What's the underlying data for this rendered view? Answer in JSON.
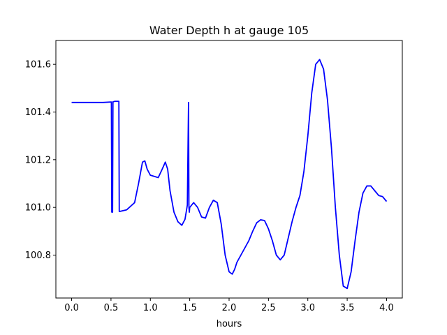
{
  "chart_data": {
    "type": "line",
    "title": "Water Depth h at gauge 105",
    "xlabel": "hours",
    "ylabel": "",
    "xlim": [
      -0.2,
      4.2
    ],
    "ylim": [
      100.62,
      101.7
    ],
    "xticks": [
      0.0,
      0.5,
      1.0,
      1.5,
      2.0,
      2.5,
      3.0,
      3.5,
      4.0
    ],
    "xtick_labels": [
      "0.0",
      "0.5",
      "1.0",
      "1.5",
      "2.0",
      "2.5",
      "3.0",
      "3.5",
      "4.0"
    ],
    "yticks": [
      100.8,
      101.0,
      101.2,
      101.4,
      101.6
    ],
    "ytick_labels": [
      "100.8",
      "101.0",
      "101.2",
      "101.4",
      "101.6"
    ],
    "grid": false,
    "legend": "none",
    "color": "#0000ff",
    "series": [
      {
        "x": [
          0.0,
          0.2,
          0.4,
          0.5,
          0.505,
          0.51,
          0.52,
          0.525,
          0.53,
          0.55,
          0.6,
          0.605,
          0.61,
          0.7,
          0.8,
          0.85,
          0.9,
          0.93,
          0.96,
          1.0,
          1.05,
          1.1,
          1.15,
          1.19,
          1.22,
          1.25,
          1.3,
          1.35,
          1.4,
          1.44,
          1.47,
          1.48,
          1.485,
          1.49,
          1.495,
          1.5,
          1.55,
          1.6,
          1.65,
          1.7,
          1.75,
          1.8,
          1.85,
          1.9,
          1.95,
          2.0,
          2.04,
          2.07,
          2.1,
          2.15,
          2.2,
          2.25,
          2.3,
          2.35,
          2.4,
          2.45,
          2.5,
          2.55,
          2.6,
          2.65,
          2.7,
          2.75,
          2.8,
          2.85,
          2.9,
          2.95,
          3.0,
          3.05,
          3.1,
          3.15,
          3.2,
          3.25,
          3.3,
          3.35,
          3.4,
          3.45,
          3.5,
          3.55,
          3.6,
          3.65,
          3.7,
          3.75,
          3.8,
          3.85,
          3.9,
          3.95,
          4.0
        ],
        "y": [
          101.44,
          101.44,
          101.44,
          101.442,
          101.442,
          100.98,
          100.98,
          101.443,
          101.443,
          101.445,
          101.445,
          100.983,
          100.983,
          100.99,
          101.02,
          101.1,
          101.19,
          101.195,
          101.16,
          101.135,
          101.13,
          101.125,
          101.16,
          101.19,
          101.16,
          101.07,
          100.98,
          100.94,
          100.925,
          100.95,
          101.01,
          101.3,
          101.44,
          101.0,
          100.98,
          101.0,
          101.02,
          101.0,
          100.96,
          100.955,
          101.0,
          101.03,
          101.02,
          100.93,
          100.8,
          100.73,
          100.72,
          100.74,
          100.77,
          100.8,
          100.83,
          100.86,
          100.9,
          100.935,
          100.948,
          100.945,
          100.91,
          100.86,
          100.8,
          100.78,
          100.8,
          100.87,
          100.94,
          101.0,
          101.05,
          101.15,
          101.3,
          101.48,
          101.6,
          101.62,
          101.58,
          101.45,
          101.25,
          101.0,
          100.8,
          100.67,
          100.66,
          100.73,
          100.86,
          100.98,
          101.06,
          101.09,
          101.09,
          101.07,
          101.05,
          101.045,
          101.025
        ]
      }
    ]
  }
}
